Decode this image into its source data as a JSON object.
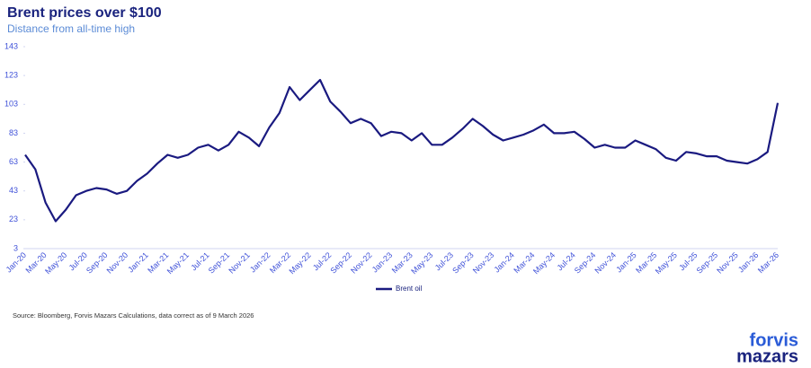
{
  "chart_data": {
    "type": "line",
    "title": "Brent prices over $100",
    "subtitle": "Distance from all-time high",
    "source": "Source: Bloomberg, Forvis Mazars Calculations, data correct as of 9 March 2026",
    "logo": [
      "forvis",
      "mazars"
    ],
    "categories": [
      "Jan-20",
      null,
      "Mar-20",
      null,
      "May-20",
      null,
      "Jul-20",
      null,
      "Sep-20",
      null,
      "Nov-20",
      null,
      "Jan-21",
      null,
      "Mar-21",
      null,
      "May-21",
      null,
      "Jul-21",
      null,
      "Sep-21",
      null,
      "Nov-21",
      null,
      "Jan-22",
      null,
      "Mar-22",
      null,
      "May-22",
      null,
      "Jul-22",
      null,
      "Sep-22",
      null,
      "Nov-22",
      null,
      "Jan-23",
      null,
      "Mar-23",
      null,
      "May-23",
      null,
      "Jul-23",
      null,
      "Sep-23",
      null,
      "Nov-23",
      null,
      "Jan-24",
      null,
      "Mar-24",
      null,
      "May-24",
      null,
      "Jul-24",
      null,
      "Sep-24",
      null,
      "Nov-24",
      null,
      "Jan-25",
      null,
      "Mar-25",
      null,
      "May-25",
      null,
      "Jul-25",
      null,
      "Sep-25",
      null,
      "Nov-25",
      null,
      "Jan-26",
      null,
      "Mar-26"
    ],
    "series": [
      {
        "name": "Brent oil",
        "color": "#1a1a80",
        "values": [
          68,
          58,
          35,
          22,
          30,
          40,
          43,
          45,
          44,
          41,
          43,
          50,
          55,
          62,
          68,
          66,
          68,
          73,
          75,
          71,
          75,
          84,
          80,
          74,
          87,
          97,
          115,
          106,
          113,
          120,
          105,
          98,
          90,
          93,
          90,
          81,
          84,
          83,
          78,
          83,
          75,
          75,
          80,
          86,
          93,
          88,
          82,
          78,
          80,
          82,
          85,
          89,
          83,
          83,
          84,
          79,
          73,
          75,
          73,
          73,
          78,
          75,
          72,
          66,
          64,
          70,
          69,
          67,
          67,
          64,
          63,
          62,
          65,
          70,
          104
        ]
      }
    ],
    "ylim": [
      3,
      143
    ],
    "yticks": [
      3,
      23,
      43,
      63,
      83,
      103,
      123,
      143
    ],
    "grid": false
  }
}
